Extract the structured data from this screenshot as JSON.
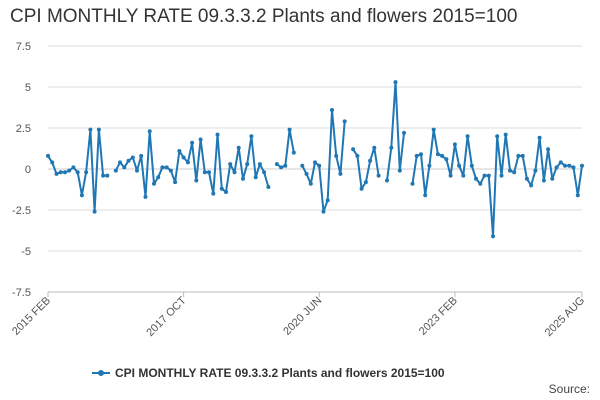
{
  "chart_data": {
    "type": "line",
    "title": "CPI MONTHLY RATE 09.3.3.2 Plants and flowers 2015=100",
    "xlabel": "",
    "ylabel": "",
    "ylim": [
      -7.5,
      7.5
    ],
    "yticks": [
      "7.5",
      "5",
      "2.5",
      "0",
      "-2.5",
      "-5",
      "-7.5"
    ],
    "ytick_values": [
      7.5,
      5,
      2.5,
      0,
      -2.5,
      -5,
      -7.5
    ],
    "xticks": [
      {
        "label": "2015 FEB",
        "index": 0
      },
      {
        "label": "2017 OCT",
        "index": 32
      },
      {
        "label": "2020 JUN",
        "index": 64
      },
      {
        "label": "2023 FEB",
        "index": 96
      },
      {
        "label": "2025 AUG",
        "index": 126
      }
    ],
    "grid": true,
    "legend_position": "bottom",
    "color": "#1f77b4",
    "series": [
      {
        "name": "CPI MONTHLY RATE 09.3.3.2 Plants and flowers 2015=100",
        "values": [
          0.8,
          0.4,
          -0.3,
          -0.2,
          -0.2,
          -0.1,
          0.1,
          -0.2,
          -1.6,
          -0.2,
          2.4,
          -2.6,
          2.4,
          -0.4,
          -0.4,
          null,
          -0.1,
          0.4,
          0.1,
          0.5,
          0.7,
          -0.1,
          0.8,
          -1.7,
          2.3,
          -0.9,
          -0.5,
          0.1,
          0.1,
          -0.1,
          -0.8,
          1.1,
          0.7,
          0.4,
          1.6,
          -0.7,
          1.8,
          -0.2,
          -0.2,
          -1.5,
          2.1,
          -1.2,
          -1.4,
          0.3,
          -0.2,
          1.3,
          -0.6,
          0.3,
          2.0,
          -0.5,
          0.3,
          -0.2,
          -1.1,
          null,
          0.3,
          0.1,
          0.2,
          2.4,
          1.0,
          null,
          0.2,
          -0.3,
          -0.9,
          0.4,
          0.2,
          -2.6,
          -1.9,
          3.6,
          0.8,
          -0.3,
          2.9,
          null,
          1.2,
          0.8,
          -1.2,
          -0.8,
          0.5,
          1.3,
          -0.4,
          null,
          -0.7,
          1.3,
          5.3,
          -0.1,
          2.2,
          null,
          -0.9,
          0.8,
          0.9,
          -1.6,
          0.2,
          2.4,
          0.9,
          0.8,
          0.6,
          -0.4,
          1.5,
          0.2,
          -0.4,
          2.0,
          0.2,
          -0.6,
          -0.9,
          -0.4,
          -0.4,
          -4.1,
          2.0,
          -0.4,
          2.1,
          -0.1,
          -0.2,
          0.8,
          0.8,
          -0.6,
          -1.0,
          -0.1,
          1.9,
          -0.7,
          1.2,
          -0.6,
          0.1,
          0.4,
          0.2,
          0.2,
          0.1,
          -1.6,
          0.2
        ]
      }
    ]
  },
  "legend": {
    "label": "CPI MONTHLY RATE 09.3.3.2 Plants and flowers 2015=100"
  },
  "footer": {
    "source": "Source:"
  }
}
